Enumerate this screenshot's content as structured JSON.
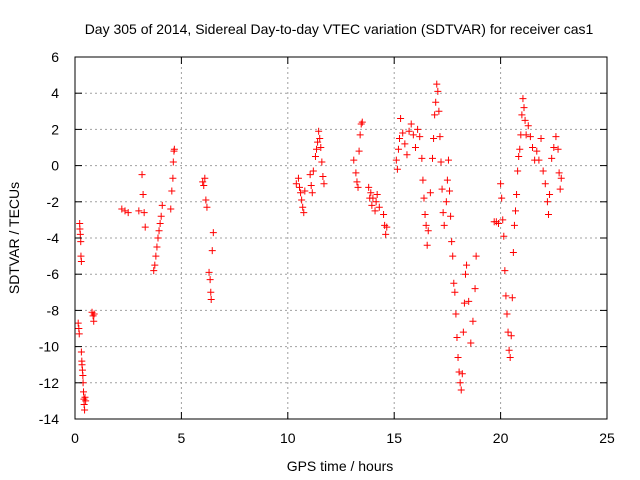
{
  "chart_data": {
    "type": "scatter",
    "title": "Day 305 of 2014, Sidereal Day-to-day VTEC variation (SDTVAR) for receiver cas1",
    "xlabel": "GPS time / hours",
    "ylabel": "SDTVAR / TECUs",
    "xlim": [
      0,
      25
    ],
    "ylim": [
      -14,
      6
    ],
    "xticks": [
      0,
      5,
      10,
      15,
      20,
      25
    ],
    "yticks": [
      -14,
      -12,
      -10,
      -8,
      -6,
      -4,
      -2,
      0,
      2,
      4,
      6
    ],
    "grid": true,
    "marker": "+",
    "color": "#ff0000",
    "series": [
      {
        "name": "SDTVAR",
        "points": [
          [
            0.15,
            -8.7
          ],
          [
            0.18,
            -9.0
          ],
          [
            0.2,
            -9.3
          ],
          [
            0.22,
            -3.2
          ],
          [
            0.23,
            -3.5
          ],
          [
            0.25,
            -3.8
          ],
          [
            0.27,
            -4.2
          ],
          [
            0.28,
            -5.0
          ],
          [
            0.3,
            -5.3
          ],
          [
            0.3,
            -10.3
          ],
          [
            0.32,
            -10.8
          ],
          [
            0.33,
            -11.0
          ],
          [
            0.35,
            -11.3
          ],
          [
            0.37,
            -11.6
          ],
          [
            0.38,
            -12.0
          ],
          [
            0.4,
            -12.5
          ],
          [
            0.42,
            -12.9
          ],
          [
            0.43,
            -13.2
          ],
          [
            0.45,
            -13.5
          ],
          [
            0.47,
            -12.8
          ],
          [
            0.5,
            -13.0
          ],
          [
            0.8,
            -8.1
          ],
          [
            0.85,
            -8.3
          ],
          [
            0.88,
            -8.6
          ],
          [
            0.9,
            -8.2
          ],
          [
            2.2,
            -2.4
          ],
          [
            2.35,
            -2.5
          ],
          [
            2.5,
            -2.6
          ],
          [
            3.0,
            -2.5
          ],
          [
            3.15,
            -0.5
          ],
          [
            3.2,
            -1.6
          ],
          [
            3.25,
            -2.6
          ],
          [
            3.3,
            -3.4
          ],
          [
            3.7,
            -5.8
          ],
          [
            3.75,
            -5.5
          ],
          [
            3.8,
            -5.0
          ],
          [
            3.85,
            -4.5
          ],
          [
            3.9,
            -4.0
          ],
          [
            3.95,
            -3.6
          ],
          [
            4.0,
            -3.2
          ],
          [
            4.05,
            -2.8
          ],
          [
            4.1,
            -2.2
          ],
          [
            4.5,
            -2.4
          ],
          [
            4.55,
            -1.4
          ],
          [
            4.6,
            -0.7
          ],
          [
            4.62,
            0.2
          ],
          [
            4.65,
            0.8
          ],
          [
            4.67,
            0.9
          ],
          [
            6.0,
            -0.9
          ],
          [
            6.05,
            -1.1
          ],
          [
            6.1,
            -0.7
          ],
          [
            6.15,
            -1.9
          ],
          [
            6.2,
            -2.3
          ],
          [
            6.3,
            -5.9
          ],
          [
            6.35,
            -6.3
          ],
          [
            6.38,
            -7.0
          ],
          [
            6.4,
            -7.4
          ],
          [
            6.45,
            -4.7
          ],
          [
            6.5,
            -3.7
          ],
          [
            10.4,
            -1.0
          ],
          [
            10.5,
            -0.7
          ],
          [
            10.55,
            -1.2
          ],
          [
            10.6,
            -1.5
          ],
          [
            10.65,
            -1.9
          ],
          [
            10.7,
            -2.3
          ],
          [
            10.75,
            -2.6
          ],
          [
            10.8,
            -1.4
          ],
          [
            11.05,
            -0.5
          ],
          [
            11.1,
            -1.1
          ],
          [
            11.15,
            -1.5
          ],
          [
            11.2,
            -0.3
          ],
          [
            11.3,
            0.5
          ],
          [
            11.35,
            0.9
          ],
          [
            11.4,
            1.3
          ],
          [
            11.45,
            1.9
          ],
          [
            11.5,
            1.5
          ],
          [
            11.55,
            1.0
          ],
          [
            11.6,
            0.2
          ],
          [
            11.65,
            -0.6
          ],
          [
            11.7,
            -1.0
          ],
          [
            13.1,
            0.3
          ],
          [
            13.2,
            -0.4
          ],
          [
            13.25,
            -0.9
          ],
          [
            13.3,
            -1.2
          ],
          [
            13.35,
            0.8
          ],
          [
            13.4,
            1.7
          ],
          [
            13.45,
            2.3
          ],
          [
            13.5,
            2.4
          ],
          [
            13.8,
            -1.2
          ],
          [
            13.85,
            -1.8
          ],
          [
            13.9,
            -1.5
          ],
          [
            13.95,
            -2.2
          ],
          [
            14.0,
            -1.8
          ],
          [
            14.1,
            -2.5
          ],
          [
            14.15,
            -2.0
          ],
          [
            14.2,
            -1.6
          ],
          [
            14.3,
            -2.3
          ],
          [
            14.5,
            -2.7
          ],
          [
            14.55,
            -3.3
          ],
          [
            14.6,
            -3.8
          ],
          [
            14.65,
            -3.4
          ],
          [
            15.1,
            0.3
          ],
          [
            15.15,
            -0.2
          ],
          [
            15.2,
            0.9
          ],
          [
            15.25,
            1.5
          ],
          [
            15.3,
            2.6
          ],
          [
            15.4,
            1.8
          ],
          [
            15.5,
            1.2
          ],
          [
            15.6,
            0.6
          ],
          [
            15.7,
            1.9
          ],
          [
            15.8,
            2.3
          ],
          [
            15.9,
            1.7
          ],
          [
            16.0,
            1.0
          ],
          [
            16.1,
            2.0
          ],
          [
            16.2,
            1.6
          ],
          [
            16.3,
            0.4
          ],
          [
            16.35,
            -0.8
          ],
          [
            16.4,
            -1.8
          ],
          [
            16.45,
            -2.7
          ],
          [
            16.5,
            -3.3
          ],
          [
            16.55,
            -4.4
          ],
          [
            16.6,
            -3.6
          ],
          [
            16.7,
            -1.5
          ],
          [
            16.8,
            0.4
          ],
          [
            16.85,
            1.5
          ],
          [
            16.9,
            2.8
          ],
          [
            16.95,
            3.5
          ],
          [
            17.0,
            4.5
          ],
          [
            17.05,
            4.1
          ],
          [
            17.1,
            3.0
          ],
          [
            17.15,
            1.6
          ],
          [
            17.2,
            0.2
          ],
          [
            17.25,
            -1.3
          ],
          [
            17.3,
            -2.6
          ],
          [
            17.35,
            -3.3
          ],
          [
            17.45,
            -2.0
          ],
          [
            17.5,
            -0.8
          ],
          [
            17.55,
            0.3
          ],
          [
            17.6,
            -1.4
          ],
          [
            17.65,
            -2.8
          ],
          [
            17.7,
            -4.2
          ],
          [
            17.75,
            -5.0
          ],
          [
            17.8,
            -6.5
          ],
          [
            17.85,
            -7.0
          ],
          [
            17.9,
            -8.2
          ],
          [
            17.95,
            -9.5
          ],
          [
            18.0,
            -10.6
          ],
          [
            18.05,
            -11.4
          ],
          [
            18.1,
            -12.0
          ],
          [
            18.15,
            -12.4
          ],
          [
            18.2,
            -11.5
          ],
          [
            18.25,
            -9.2
          ],
          [
            18.3,
            -7.6
          ],
          [
            18.35,
            -6.0
          ],
          [
            18.4,
            -5.5
          ],
          [
            18.5,
            -7.5
          ],
          [
            18.6,
            -9.8
          ],
          [
            18.7,
            -8.6
          ],
          [
            18.8,
            -6.8
          ],
          [
            18.85,
            -5.0
          ],
          [
            19.7,
            -3.1
          ],
          [
            19.8,
            -3.1
          ],
          [
            19.9,
            -3.2
          ],
          [
            20.0,
            -1.0
          ],
          [
            20.05,
            -1.8
          ],
          [
            20.1,
            -3.0
          ],
          [
            20.15,
            -3.9
          ],
          [
            20.2,
            -5.8
          ],
          [
            20.25,
            -7.2
          ],
          [
            20.3,
            -8.2
          ],
          [
            20.35,
            -9.2
          ],
          [
            20.4,
            -10.2
          ],
          [
            20.45,
            -10.6
          ],
          [
            20.5,
            -9.4
          ],
          [
            20.55,
            -7.3
          ],
          [
            20.6,
            -4.8
          ],
          [
            20.65,
            -3.3
          ],
          [
            20.7,
            -2.5
          ],
          [
            20.75,
            -1.6
          ],
          [
            20.8,
            -0.3
          ],
          [
            20.85,
            0.5
          ],
          [
            20.9,
            0.9
          ],
          [
            20.95,
            1.7
          ],
          [
            21.0,
            2.8
          ],
          [
            21.05,
            3.7
          ],
          [
            21.1,
            3.2
          ],
          [
            21.15,
            2.5
          ],
          [
            21.2,
            1.7
          ],
          [
            21.3,
            2.2
          ],
          [
            21.4,
            1.6
          ],
          [
            21.5,
            1.0
          ],
          [
            21.6,
            0.3
          ],
          [
            21.7,
            0.8
          ],
          [
            21.8,
            0.3
          ],
          [
            21.9,
            1.5
          ],
          [
            22.0,
            -0.3
          ],
          [
            22.1,
            -1.0
          ],
          [
            22.2,
            -2.0
          ],
          [
            22.25,
            -2.7
          ],
          [
            22.3,
            -1.6
          ],
          [
            22.4,
            0.4
          ],
          [
            22.5,
            1.0
          ],
          [
            22.6,
            1.6
          ],
          [
            22.7,
            0.9
          ],
          [
            22.75,
            -0.4
          ],
          [
            22.8,
            -1.3
          ],
          [
            22.85,
            -0.7
          ]
        ]
      }
    ]
  }
}
